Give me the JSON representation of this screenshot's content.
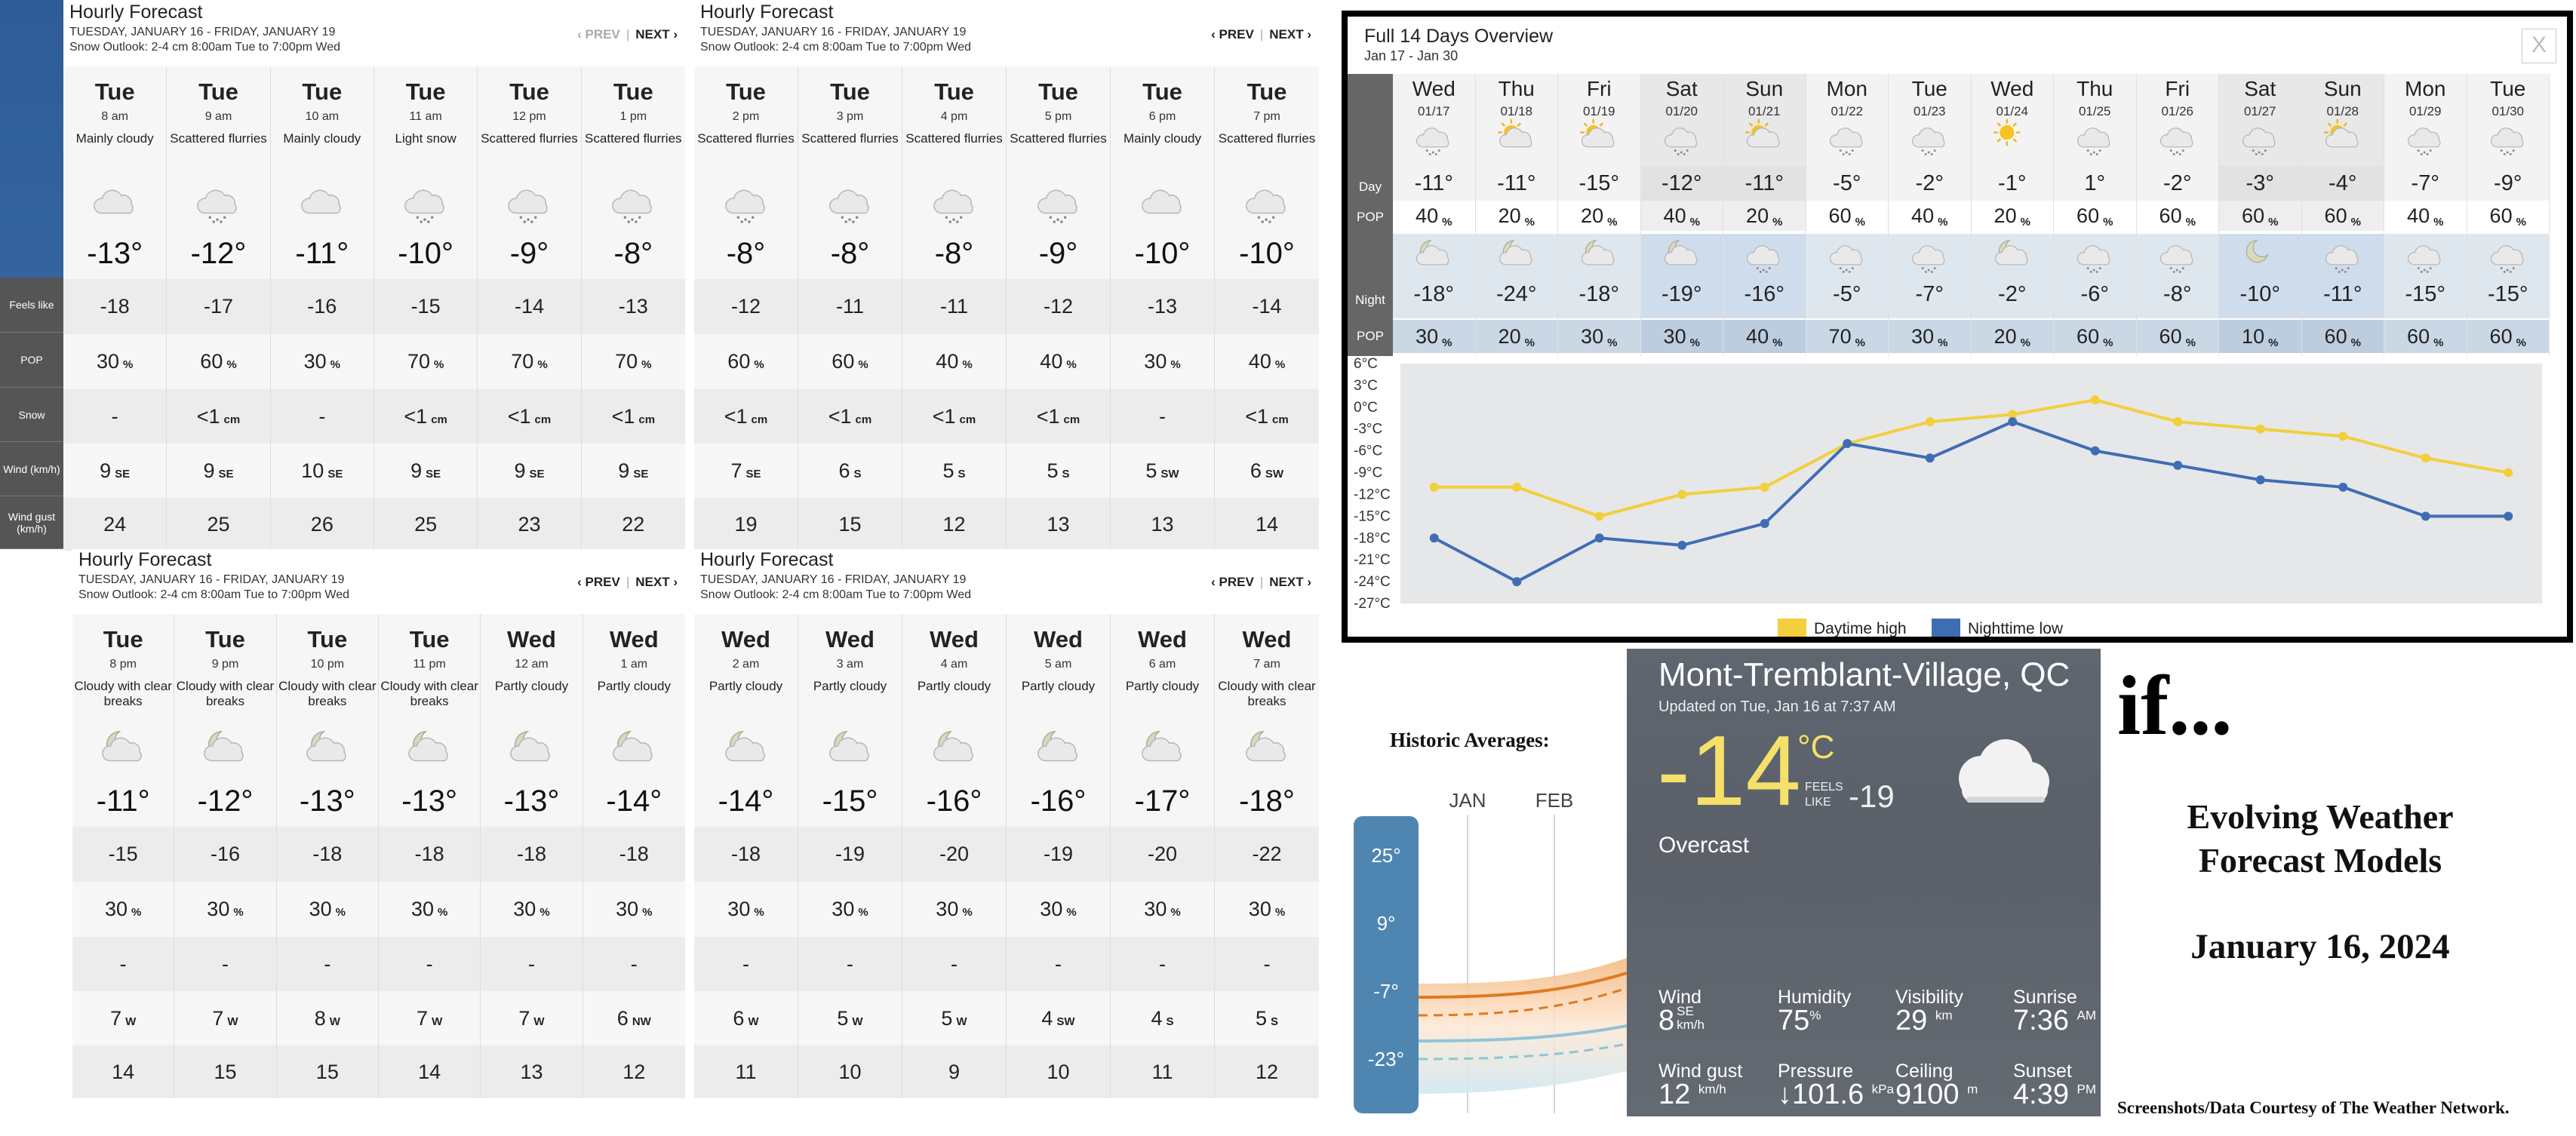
{
  "hourly_panels": [
    {
      "title": "Hourly Forecast",
      "subtitle": "TUESDAY, JANUARY 16 - FRIDAY, JANUARY 19",
      "snow_outlook": "Snow Outlook: 2-4 cm 8:00am Tue to 7:00pm Wed",
      "prev": "‹ PREV",
      "next": "NEXT ›",
      "prev_disabled": true,
      "hours": [
        {
          "day": "Tue",
          "time": "8 am",
          "cond": "Mainly cloudy",
          "icon": "cloud",
          "temp": "-13°",
          "feels": "-18",
          "pop": "30",
          "pop_unit": "%",
          "snow": "-",
          "snow_unit": "",
          "wind": "9",
          "wind_dir": "SE",
          "gust": "24"
        },
        {
          "day": "Tue",
          "time": "9 am",
          "cond": "Scattered flurries",
          "icon": "flurries",
          "temp": "-12°",
          "feels": "-17",
          "pop": "60",
          "pop_unit": "%",
          "snow": "<1",
          "snow_unit": "cm",
          "wind": "9",
          "wind_dir": "SE",
          "gust": "25"
        },
        {
          "day": "Tue",
          "time": "10 am",
          "cond": "Mainly cloudy",
          "icon": "cloud",
          "temp": "-11°",
          "feels": "-16",
          "pop": "30",
          "pop_unit": "%",
          "snow": "-",
          "snow_unit": "",
          "wind": "10",
          "wind_dir": "SE",
          "gust": "26"
        },
        {
          "day": "Tue",
          "time": "11 am",
          "cond": "Light snow",
          "icon": "flurries",
          "temp": "-10°",
          "feels": "-15",
          "pop": "70",
          "pop_unit": "%",
          "snow": "<1",
          "snow_unit": "cm",
          "wind": "9",
          "wind_dir": "SE",
          "gust": "25"
        },
        {
          "day": "Tue",
          "time": "12 pm",
          "cond": "Scattered flurries",
          "icon": "flurries",
          "temp": "-9°",
          "feels": "-14",
          "pop": "70",
          "pop_unit": "%",
          "snow": "<1",
          "snow_unit": "cm",
          "wind": "9",
          "wind_dir": "SE",
          "gust": "23"
        },
        {
          "day": "Tue",
          "time": "1 pm",
          "cond": "Scattered flurries",
          "icon": "flurries",
          "temp": "-8°",
          "feels": "-13",
          "pop": "70",
          "pop_unit": "%",
          "snow": "<1",
          "snow_unit": "cm",
          "wind": "9",
          "wind_dir": "SE",
          "gust": "22"
        }
      ]
    },
    {
      "title": "Hourly Forecast",
      "subtitle": "TUESDAY, JANUARY 16 - FRIDAY, JANUARY 19",
      "snow_outlook": "Snow Outlook: 2-4 cm 8:00am Tue to 7:00pm Wed",
      "prev": "‹ PREV",
      "next": "NEXT ›",
      "prev_disabled": false,
      "hours": [
        {
          "day": "Tue",
          "time": "2 pm",
          "cond": "Scattered flurries",
          "icon": "flurries",
          "temp": "-8°",
          "feels": "-12",
          "pop": "60",
          "pop_unit": "%",
          "snow": "<1",
          "snow_unit": "cm",
          "wind": "7",
          "wind_dir": "SE",
          "gust": "19"
        },
        {
          "day": "Tue",
          "time": "3 pm",
          "cond": "Scattered flurries",
          "icon": "flurries",
          "temp": "-8°",
          "feels": "-11",
          "pop": "60",
          "pop_unit": "%",
          "snow": "<1",
          "snow_unit": "cm",
          "wind": "6",
          "wind_dir": "S",
          "gust": "15"
        },
        {
          "day": "Tue",
          "time": "4 pm",
          "cond": "Scattered flurries",
          "icon": "flurries",
          "temp": "-8°",
          "feels": "-11",
          "pop": "40",
          "pop_unit": "%",
          "snow": "<1",
          "snow_unit": "cm",
          "wind": "5",
          "wind_dir": "S",
          "gust": "12"
        },
        {
          "day": "Tue",
          "time": "5 pm",
          "cond": "Scattered flurries",
          "icon": "flurries",
          "temp": "-9°",
          "feels": "-12",
          "pop": "40",
          "pop_unit": "%",
          "snow": "<1",
          "snow_unit": "cm",
          "wind": "5",
          "wind_dir": "S",
          "gust": "13"
        },
        {
          "day": "Tue",
          "time": "6 pm",
          "cond": "Mainly cloudy",
          "icon": "cloud",
          "temp": "-10°",
          "feels": "-13",
          "pop": "30",
          "pop_unit": "%",
          "snow": "-",
          "snow_unit": "",
          "wind": "5",
          "wind_dir": "SW",
          "gust": "13"
        },
        {
          "day": "Tue",
          "time": "7 pm",
          "cond": "Scattered flurries",
          "icon": "flurries",
          "temp": "-10°",
          "feels": "-14",
          "pop": "40",
          "pop_unit": "%",
          "snow": "<1",
          "snow_unit": "cm",
          "wind": "6",
          "wind_dir": "SW",
          "gust": "14"
        }
      ]
    },
    {
      "title": "Hourly Forecast",
      "subtitle": "TUESDAY, JANUARY 16 - FRIDAY, JANUARY 19",
      "snow_outlook": "Snow Outlook: 2-4 cm 8:00am Tue to 7:00pm Wed",
      "prev": "‹ PREV",
      "next": "NEXT ›",
      "prev_disabled": false,
      "hours": [
        {
          "day": "Tue",
          "time": "8 pm",
          "cond": "Cloudy with clear breaks",
          "icon": "moon-cloud",
          "temp": "-11°",
          "feels": "-15",
          "pop": "30",
          "pop_unit": "%",
          "snow": "-",
          "snow_unit": "",
          "wind": "7",
          "wind_dir": "W",
          "gust": "14"
        },
        {
          "day": "Tue",
          "time": "9 pm",
          "cond": "Cloudy with clear breaks",
          "icon": "moon-cloud",
          "temp": "-12°",
          "feels": "-16",
          "pop": "30",
          "pop_unit": "%",
          "snow": "-",
          "snow_unit": "",
          "wind": "7",
          "wind_dir": "W",
          "gust": "15"
        },
        {
          "day": "Tue",
          "time": "10 pm",
          "cond": "Cloudy with clear breaks",
          "icon": "moon-cloud",
          "temp": "-13°",
          "feels": "-18",
          "pop": "30",
          "pop_unit": "%",
          "snow": "-",
          "snow_unit": "",
          "wind": "8",
          "wind_dir": "W",
          "gust": "15"
        },
        {
          "day": "Tue",
          "time": "11 pm",
          "cond": "Cloudy with clear breaks",
          "icon": "moon-cloud",
          "temp": "-13°",
          "feels": "-18",
          "pop": "30",
          "pop_unit": "%",
          "snow": "-",
          "snow_unit": "",
          "wind": "7",
          "wind_dir": "W",
          "gust": "14"
        },
        {
          "day": "Wed",
          "time": "12 am",
          "cond": "Partly cloudy",
          "icon": "moon-cloud",
          "temp": "-13°",
          "feels": "-18",
          "pop": "30",
          "pop_unit": "%",
          "snow": "-",
          "snow_unit": "",
          "wind": "7",
          "wind_dir": "W",
          "gust": "13"
        },
        {
          "day": "Wed",
          "time": "1 am",
          "cond": "Partly cloudy",
          "icon": "moon-cloud",
          "temp": "-14°",
          "feels": "-18",
          "pop": "30",
          "pop_unit": "%",
          "snow": "-",
          "snow_unit": "",
          "wind": "6",
          "wind_dir": "NW",
          "gust": "12"
        }
      ]
    },
    {
      "title": "Hourly Forecast",
      "subtitle": "TUESDAY, JANUARY 16 - FRIDAY, JANUARY 19",
      "snow_outlook": "Snow Outlook: 2-4 cm 8:00am Tue to 7:00pm Wed",
      "prev": "‹ PREV",
      "next": "NEXT ›",
      "prev_disabled": false,
      "hours": [
        {
          "day": "Wed",
          "time": "2 am",
          "cond": "Partly cloudy",
          "icon": "moon-cloud",
          "temp": "-14°",
          "feels": "-18",
          "pop": "30",
          "pop_unit": "%",
          "snow": "-",
          "snow_unit": "",
          "wind": "6",
          "wind_dir": "W",
          "gust": "11"
        },
        {
          "day": "Wed",
          "time": "3 am",
          "cond": "Partly cloudy",
          "icon": "moon-cloud",
          "temp": "-15°",
          "feels": "-19",
          "pop": "30",
          "pop_unit": "%",
          "snow": "-",
          "snow_unit": "",
          "wind": "5",
          "wind_dir": "W",
          "gust": "10"
        },
        {
          "day": "Wed",
          "time": "4 am",
          "cond": "Partly cloudy",
          "icon": "moon-cloud",
          "temp": "-16°",
          "feels": "-20",
          "pop": "30",
          "pop_unit": "%",
          "snow": "-",
          "snow_unit": "",
          "wind": "5",
          "wind_dir": "W",
          "gust": "9"
        },
        {
          "day": "Wed",
          "time": "5 am",
          "cond": "Partly cloudy",
          "icon": "moon-cloud",
          "temp": "-16°",
          "feels": "-19",
          "pop": "30",
          "pop_unit": "%",
          "snow": "-",
          "snow_unit": "",
          "wind": "4",
          "wind_dir": "SW",
          "gust": "10"
        },
        {
          "day": "Wed",
          "time": "6 am",
          "cond": "Partly cloudy",
          "icon": "moon-cloud",
          "temp": "-17°",
          "feels": "-20",
          "pop": "30",
          "pop_unit": "%",
          "snow": "-",
          "snow_unit": "",
          "wind": "4",
          "wind_dir": "S",
          "gust": "11"
        },
        {
          "day": "Wed",
          "time": "7 am",
          "cond": "Cloudy with clear breaks",
          "icon": "moon-cloud",
          "temp": "-18°",
          "feels": "-22",
          "pop": "30",
          "pop_unit": "%",
          "snow": "-",
          "snow_unit": "",
          "wind": "5",
          "wind_dir": "S",
          "gust": "12"
        }
      ]
    }
  ],
  "row_labels": {
    "feels": "Feels like",
    "pop": "POP",
    "snow": "Snow",
    "wind": "Wind (km/h)",
    "gust": "Wind gust (km/h)"
  },
  "overview": {
    "title": "Full 14 Days Overview",
    "subtitle": "Jan 17 - Jan 30",
    "close": "X",
    "labels": {
      "day": "Day",
      "pop": "POP",
      "night": "Night",
      "npop": "POP"
    },
    "days": [
      {
        "day": "Wed",
        "date": "01/17",
        "icon": "flurries",
        "hi": "-11°",
        "pop": "40",
        "lo": "-18°",
        "nicon": "moon-cloud",
        "npop": "30",
        "hl": false
      },
      {
        "day": "Thu",
        "date": "01/18",
        "icon": "sun-cloud",
        "hi": "-11°",
        "pop": "20",
        "lo": "-24°",
        "nicon": "moon-cloud",
        "npop": "20",
        "hl": false
      },
      {
        "day": "Fri",
        "date": "01/19",
        "icon": "sun-cloud",
        "hi": "-15°",
        "pop": "20",
        "lo": "-18°",
        "nicon": "moon-cloud",
        "npop": "30",
        "hl": false
      },
      {
        "day": "Sat",
        "date": "01/20",
        "icon": "flurries",
        "hi": "-12°",
        "pop": "40",
        "lo": "-19°",
        "nicon": "moon-cloud",
        "npop": "30",
        "hl": true
      },
      {
        "day": "Sun",
        "date": "01/21",
        "icon": "sun-cloud",
        "hi": "-11°",
        "pop": "20",
        "lo": "-16°",
        "nicon": "flurries",
        "npop": "40",
        "hl": true
      },
      {
        "day": "Mon",
        "date": "01/22",
        "icon": "flurries",
        "hi": "-5°",
        "pop": "60",
        "lo": "-5°",
        "nicon": "flurries",
        "npop": "70",
        "hl": false
      },
      {
        "day": "Tue",
        "date": "01/23",
        "icon": "flurries",
        "hi": "-2°",
        "pop": "40",
        "lo": "-7°",
        "nicon": "flurries",
        "npop": "30",
        "hl": false
      },
      {
        "day": "Wed",
        "date": "01/24",
        "icon": "sun",
        "hi": "-1°",
        "pop": "20",
        "lo": "-2°",
        "nicon": "moon-cloud",
        "npop": "20",
        "hl": false
      },
      {
        "day": "Thu",
        "date": "01/25",
        "icon": "flurries",
        "hi": "1°",
        "pop": "60",
        "lo": "-6°",
        "nicon": "flurries",
        "npop": "60",
        "hl": false
      },
      {
        "day": "Fri",
        "date": "01/26",
        "icon": "flurries",
        "hi": "-2°",
        "pop": "60",
        "lo": "-8°",
        "nicon": "flurries",
        "npop": "60",
        "hl": false
      },
      {
        "day": "Sat",
        "date": "01/27",
        "icon": "flurries",
        "hi": "-3°",
        "pop": "60",
        "lo": "-10°",
        "nicon": "moon",
        "npop": "10",
        "hl": true
      },
      {
        "day": "Sun",
        "date": "01/28",
        "icon": "sun-cloud",
        "hi": "-4°",
        "pop": "60",
        "lo": "-11°",
        "nicon": "flurries",
        "npop": "60",
        "hl": true
      },
      {
        "day": "Mon",
        "date": "01/29",
        "icon": "flurries",
        "hi": "-7°",
        "pop": "40",
        "lo": "-15°",
        "nicon": "flurries",
        "npop": "60",
        "hl": false
      },
      {
        "day": "Tue",
        "date": "01/30",
        "icon": "flurries",
        "hi": "-9°",
        "pop": "60",
        "lo": "-15°",
        "nicon": "flurries",
        "npop": "60",
        "hl": false
      }
    ],
    "pop_unit": "%"
  },
  "chart_data": {
    "type": "line",
    "y_ticks": [
      "6°C",
      "3°C",
      "0°C",
      "-3°C",
      "-6°C",
      "-9°C",
      "-12°C",
      "-15°C",
      "-18°C",
      "-21°C",
      "-24°C",
      "-27°C"
    ],
    "ylim": [
      -27,
      6
    ],
    "x": [
      "01/17",
      "01/18",
      "01/19",
      "01/20",
      "01/21",
      "01/22",
      "01/23",
      "01/24",
      "01/25",
      "01/26",
      "01/27",
      "01/28",
      "01/29",
      "01/30"
    ],
    "series": [
      {
        "name": "Daytime high",
        "color": "#f2cf3b",
        "values": [
          -11,
          -11,
          -15,
          -12,
          -11,
          -5,
          -2,
          -1,
          1,
          -2,
          -3,
          -4,
          -7,
          -9
        ]
      },
      {
        "name": "Nighttime low",
        "color": "#3f6db4",
        "values": [
          -18,
          -24,
          -18,
          -19,
          -16,
          -5,
          -7,
          -2,
          -6,
          -8,
          -10,
          -11,
          -15,
          -15
        ]
      }
    ],
    "legend_position": "bottom"
  },
  "historic": {
    "title": "Historic Averages:",
    "months": [
      "JAN",
      "FEB"
    ],
    "scale": [
      "25°",
      "9°",
      "-7°",
      "-23°"
    ]
  },
  "current": {
    "city": "Mont-Tremblant-Village, QC",
    "updated": "Updated on Tue, Jan 16 at 7:37 AM",
    "temp": "-14",
    "unit": "°C",
    "feels_label_1": "FEELS",
    "feels_label_2": "LIKE",
    "feels": "-19",
    "condition": "Overcast",
    "wind_label": "Wind",
    "wind": "8",
    "wind_dir": "SE",
    "wind_unit": "km/h",
    "humidity_label": "Humidity",
    "humidity": "75",
    "humidity_unit": "%",
    "visibility_label": "Visibility",
    "visibility": "29",
    "visibility_unit": "km",
    "sunrise_label": "Sunrise",
    "sunrise": "7:36",
    "sunrise_unit": "AM",
    "gust_label": "Wind gust",
    "gust": "12",
    "gust_unit": "km/h",
    "pressure_label": "Pressure",
    "pressure": "↓101.6",
    "pressure_unit": "kPa",
    "ceiling_label": "Ceiling",
    "ceiling": "9100",
    "ceiling_unit": "m",
    "sunset_label": "Sunset",
    "sunset": "4:39",
    "sunset_unit": "PM"
  },
  "right_text": {
    "if": "if...",
    "heading_1": "Evolving Weather",
    "heading_2": "Forecast Models",
    "date": "January 16, 2024",
    "credit": "Screenshots/Data Courtesy of The Weather Network."
  },
  "colors": {
    "day_high": "#f2cf3b",
    "night_low": "#3f6db4",
    "temp_yellow": "#f5e06a",
    "left_strip": "#2d5c96"
  }
}
